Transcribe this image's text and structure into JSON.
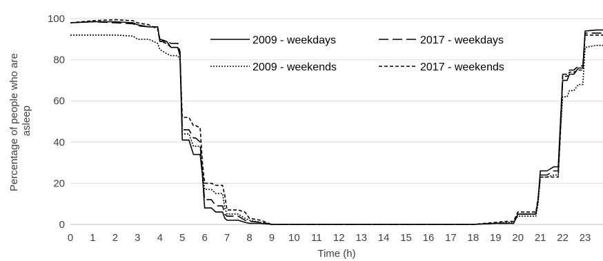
{
  "chart_data": {
    "type": "line",
    "title": "",
    "xlabel": "Time (h)",
    "ylabel": "Percentage of people who are asleep",
    "ylabel_lines": [
      "Percentage of people who are",
      "asleep"
    ],
    "xlim": [
      0,
      23.8
    ],
    "ylim": [
      0,
      100
    ],
    "xticks": [
      0,
      1,
      2,
      3,
      4,
      5,
      6,
      7,
      8,
      9,
      10,
      11,
      12,
      13,
      14,
      15,
      16,
      17,
      18,
      19,
      20,
      21,
      22,
      23
    ],
    "yticks": [
      0,
      20,
      40,
      60,
      80,
      100
    ],
    "grid": "horizontal",
    "legend": "top-right, two columns, inside plot area",
    "series": [
      {
        "name": "2009 - weekdays",
        "color": "#000000",
        "dash": "solid",
        "x": [
          0,
          1,
          2,
          2.8,
          3.0,
          3.5,
          3.9,
          4.0,
          4.3,
          4.5,
          4.8,
          4.9,
          5.0,
          5.3,
          5.5,
          5.6,
          5.8,
          5.9,
          6.0,
          6.3,
          6.5,
          6.8,
          6.9,
          7.0,
          7.5,
          7.8,
          8.0,
          8.5,
          9.0,
          12,
          18,
          19.0,
          19.5,
          19.8,
          20.0,
          20.5,
          20.8,
          20.9,
          21.0,
          21.3,
          21.6,
          21.8,
          21.9,
          22.0,
          22.2,
          22.3,
          22.5,
          22.7,
          22.9,
          23.0,
          23.5,
          23.8
        ],
        "y": [
          98,
          98.5,
          98.5,
          98,
          97,
          96,
          96,
          89,
          89,
          86,
          86,
          82,
          41,
          41,
          34,
          34,
          34,
          24,
          8,
          8,
          6,
          6,
          3,
          2,
          2,
          1,
          0.5,
          0.5,
          0,
          0,
          0,
          0.5,
          0.5,
          0.5,
          5,
          5,
          5,
          12,
          26,
          26,
          28,
          28,
          50,
          70,
          70,
          73,
          73,
          76,
          76,
          94,
          94.5,
          94.5
        ]
      },
      {
        "name": "2017 - weekdays",
        "color": "#000000",
        "dash": "long-dash",
        "x": [
          0,
          1,
          2,
          2.8,
          3.0,
          3.5,
          3.9,
          4.0,
          4.3,
          4.5,
          4.8,
          4.9,
          5.0,
          5.3,
          5.5,
          5.6,
          5.8,
          5.9,
          6.0,
          6.3,
          6.5,
          6.8,
          6.9,
          7.0,
          7.5,
          7.8,
          8.0,
          8.5,
          9.0,
          12,
          18,
          19.0,
          19.5,
          19.8,
          20.0,
          20.5,
          20.8,
          20.9,
          21.0,
          21.3,
          21.6,
          21.8,
          21.9,
          22.0,
          22.2,
          22.3,
          22.5,
          22.7,
          22.9,
          23.0,
          23.5,
          23.8
        ],
        "y": [
          98,
          98.5,
          98,
          97.5,
          96.5,
          96,
          96,
          90,
          89,
          88,
          88,
          84,
          46,
          46,
          42,
          42,
          40,
          24,
          12,
          12,
          9,
          9,
          5,
          4,
          4,
          2,
          1.5,
          1,
          0,
          0,
          0,
          0.5,
          0.5,
          0.5,
          5,
          5,
          5,
          12,
          24,
          24,
          26,
          26,
          50,
          73,
          73,
          75,
          75,
          77,
          77,
          93,
          93,
          93
        ],
        "line_width": 1.6
      },
      {
        "name": "2009 - weekends",
        "color": "#000000",
        "dash": "dotted",
        "x": [
          0,
          1,
          2,
          2.8,
          3.0,
          3.5,
          3.9,
          4.0,
          4.3,
          4.5,
          4.8,
          4.9,
          5.0,
          5.3,
          5.5,
          5.6,
          5.8,
          5.9,
          6.0,
          6.3,
          6.5,
          6.8,
          6.9,
          7.0,
          7.5,
          7.8,
          8.0,
          8.5,
          9.0,
          12,
          18,
          19.0,
          19.5,
          19.8,
          20.0,
          20.5,
          20.8,
          20.9,
          21.0,
          21.3,
          21.6,
          21.8,
          21.9,
          22.0,
          22.2,
          22.3,
          22.5,
          22.7,
          22.9,
          23.0,
          23.5,
          23.8
        ],
        "y": [
          92,
          92,
          92,
          91.5,
          90,
          90,
          88,
          85,
          83,
          82,
          82,
          80,
          44,
          44,
          38,
          38,
          38,
          26,
          17,
          17,
          15,
          15,
          8,
          5,
          5,
          3,
          2,
          1,
          0,
          0,
          0,
          0.5,
          1,
          1,
          4,
          4,
          4,
          10,
          23,
          23,
          24,
          24,
          46,
          62,
          62,
          65,
          65,
          68,
          68,
          86,
          87,
          87
        ]
      },
      {
        "name": "2017 - weekends",
        "color": "#000000",
        "dash": "short-dash",
        "x": [
          0,
          1,
          2,
          2.8,
          3.0,
          3.5,
          3.9,
          4.0,
          4.3,
          4.5,
          4.8,
          4.9,
          5.0,
          5.3,
          5.5,
          5.6,
          5.8,
          5.9,
          6.0,
          6.3,
          6.5,
          6.8,
          6.9,
          7.0,
          7.5,
          7.8,
          8.0,
          8.5,
          9.0,
          12,
          18,
          19.0,
          19.5,
          19.8,
          20.0,
          20.5,
          20.8,
          20.9,
          21.0,
          21.3,
          21.6,
          21.8,
          21.9,
          22.0,
          22.2,
          22.3,
          22.5,
          22.7,
          22.9,
          23.0,
          23.5,
          23.8
        ],
        "y": [
          98,
          99,
          99.5,
          99,
          98,
          97,
          95,
          89,
          88,
          86,
          86,
          82,
          52,
          52,
          48,
          48,
          47,
          30,
          20,
          20,
          19,
          19,
          14,
          7,
          7,
          6,
          3,
          2,
          0,
          0,
          0,
          1,
          1.5,
          1.5,
          6,
          6,
          6,
          13,
          23,
          23,
          23,
          23,
          45,
          72,
          72,
          74,
          74,
          75,
          75,
          92,
          92,
          92
        ]
      }
    ]
  }
}
